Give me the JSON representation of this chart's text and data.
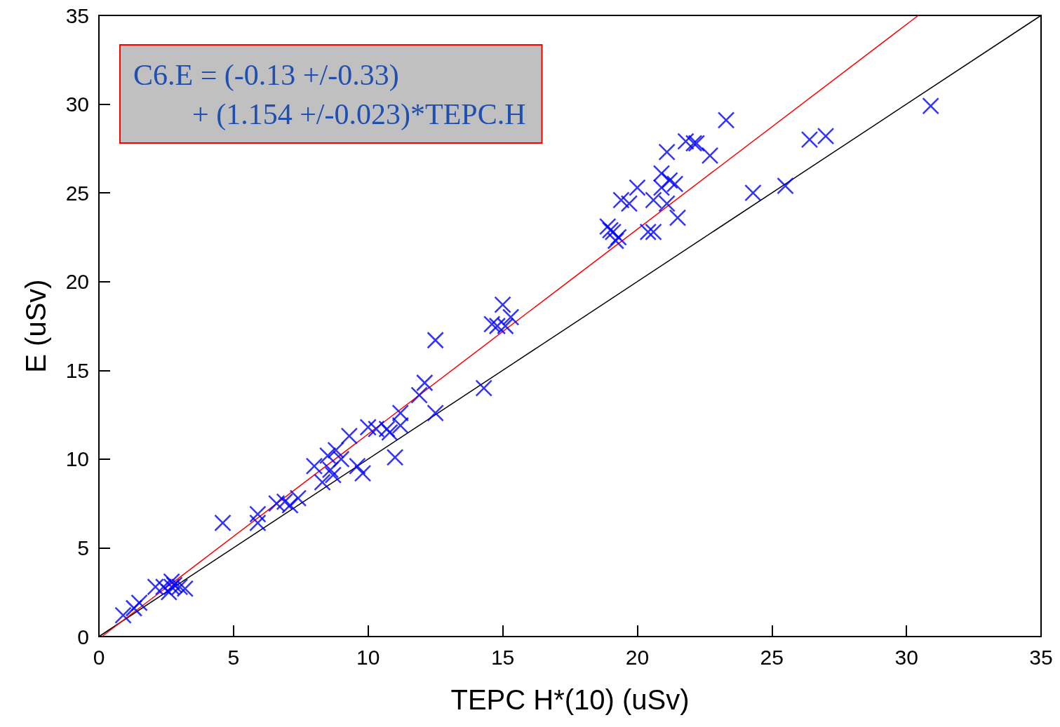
{
  "chart_data": {
    "type": "scatter",
    "xlabel": "TEPC H*(10) (uSv)",
    "ylabel": "E (uSv)",
    "annotations": [
      "C6.E = (-0.13 +/-0.33)\n        + (1.154 +/-0.023)*TEPC.H"
    ],
    "xlim": [
      0,
      35
    ],
    "xticks": [
      0,
      5,
      10,
      15,
      20,
      25,
      30,
      35
    ],
    "ylim": [
      0,
      35
    ],
    "yticks": [
      0,
      5,
      10,
      15,
      20,
      25,
      30,
      35
    ],
    "grid": false,
    "marker": "cross",
    "series": [
      {
        "color": "#0000ff",
        "x": [
          0.9,
          1.3,
          1.5,
          2.1,
          2.4,
          2.6,
          2.7,
          2.8,
          3.0,
          3.2,
          2.7,
          4.6,
          5.9,
          5.9,
          6.6,
          6.9,
          7.1,
          7.4,
          8.0,
          8.3,
          8.5,
          8.8,
          8.6,
          8.7,
          9.0,
          9.3,
          9.6,
          9.8,
          10.0,
          10.3,
          10.7,
          10.8,
          11.0,
          11.2,
          11.2,
          11.9,
          12.1,
          12.5,
          12.5,
          14.3,
          14.6,
          14.8,
          15.0,
          15.1,
          15.3,
          18.9,
          19.0,
          19.1,
          19.2,
          19.3,
          19.4,
          19.7,
          20.0,
          20.4,
          20.6,
          20.6,
          20.9,
          20.9,
          21.1,
          21.2,
          21.4,
          21.5,
          21.1,
          21.8,
          22.1,
          22.2,
          22.7,
          23.3,
          24.3,
          25.5,
          26.4,
          27.0,
          30.9
        ],
        "values": [
          1.2,
          1.6,
          1.9,
          2.8,
          2.8,
          2.5,
          3.1,
          2.9,
          2.8,
          2.7,
          2.8,
          6.4,
          6.9,
          6.4,
          7.5,
          7.6,
          7.4,
          7.8,
          9.6,
          8.7,
          10.2,
          10.5,
          9.4,
          9.1,
          10.0,
          11.3,
          9.6,
          9.2,
          11.8,
          11.7,
          11.7,
          11.5,
          10.1,
          12.6,
          11.9,
          13.6,
          14.3,
          16.7,
          12.6,
          14.0,
          17.6,
          17.5,
          18.7,
          17.5,
          18.0,
          23.1,
          22.9,
          22.8,
          22.3,
          22.5,
          24.6,
          24.4,
          25.3,
          22.8,
          22.8,
          24.6,
          25.3,
          26.1,
          27.3,
          25.7,
          25.5,
          23.6,
          24.4,
          27.9,
          27.8,
          27.8,
          27.1,
          29.1,
          25.0,
          25.4,
          28.0,
          28.2,
          29.9
        ]
      },
      {
        "type": "line",
        "color": "#000000",
        "marker": "none",
        "line_style": "solid",
        "x": [
          0,
          35
        ],
        "values": [
          0,
          35
        ]
      },
      {
        "type": "line",
        "color": "#ff0000",
        "marker": "none",
        "line_style": "solid",
        "x": [
          0.11,
          30.44
        ],
        "values": [
          0,
          35
        ]
      }
    ]
  }
}
